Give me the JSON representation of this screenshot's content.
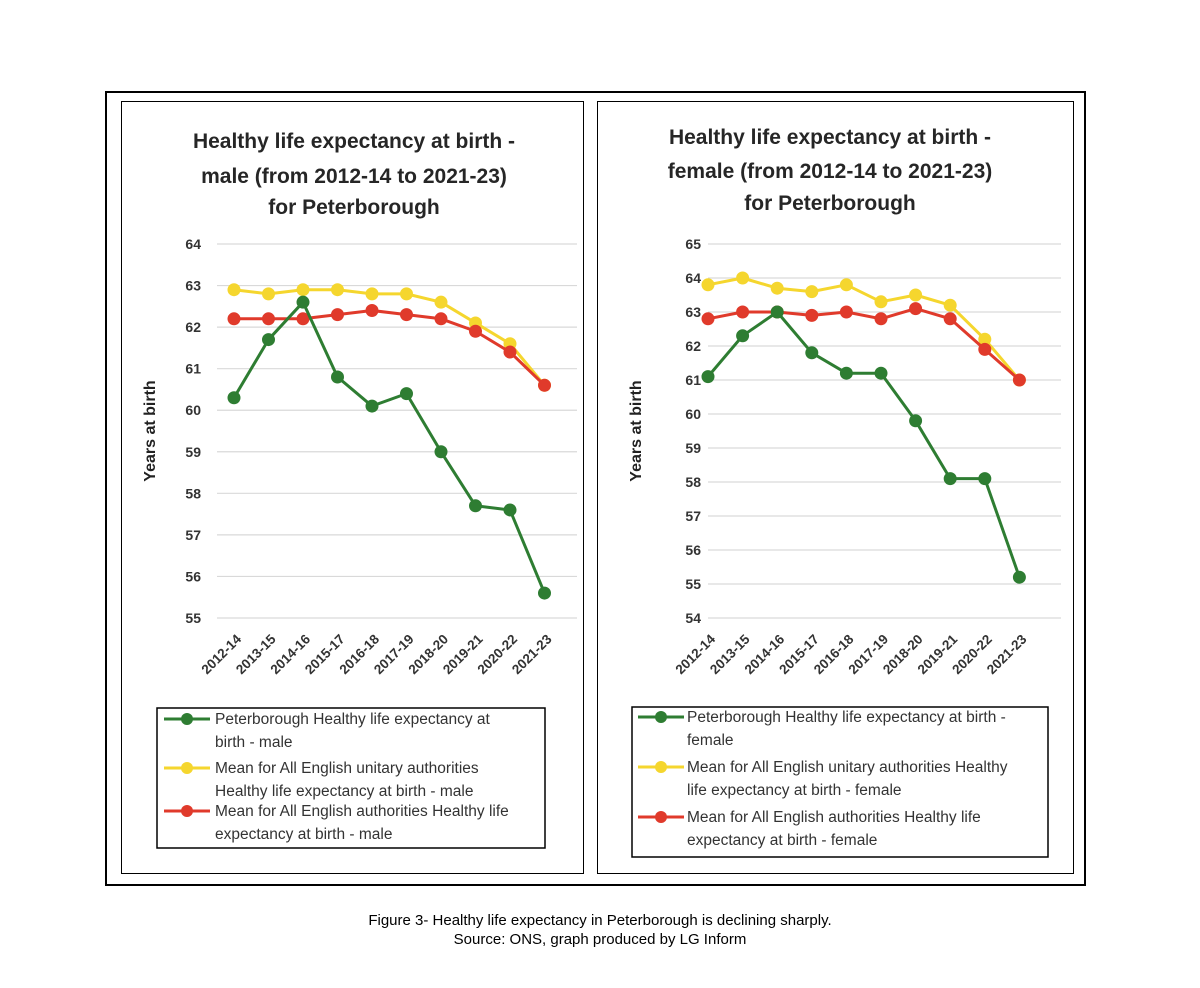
{
  "caption": {
    "line1": "Figure 3- Healthy life expectancy in Peterborough is declining sharply.",
    "line2": "Source: ONS, graph produced by LG Inform"
  },
  "colors": {
    "peterborough": "#2e7d32",
    "unitary": "#f5d62e",
    "all_english": "#e03a2b",
    "grid": "#d9d9d9"
  },
  "chart_data": [
    {
      "type": "line",
      "title": [
        "Healthy life expectancy at birth -",
        "male (from 2012-14 to 2021-23)",
        "for Peterborough"
      ],
      "xlabel": "",
      "ylabel": "Years at birth",
      "ylim": [
        55,
        64
      ],
      "yticks": [
        "64",
        "63",
        "62",
        "61",
        "60",
        "59",
        "58",
        "57",
        "56",
        "55"
      ],
      "grid": true,
      "categories": [
        "2012-14",
        "2013-15",
        "2014-16",
        "2015-17",
        "2016-18",
        "2017-19",
        "2018-20",
        "2019-21",
        "2020-22",
        "2021-23"
      ],
      "series": [
        {
          "name": "Mean for All English unitary authorities Healthy life expectancy at birth - male",
          "color_key": "unitary",
          "values": [
            62.9,
            62.8,
            62.9,
            62.9,
            62.8,
            62.8,
            62.6,
            62.1,
            61.6,
            60.6
          ]
        },
        {
          "name": "Mean for All English authorities Healthy life expectancy at birth - male",
          "color_key": "all_english",
          "values": [
            62.2,
            62.2,
            62.2,
            62.3,
            62.4,
            62.3,
            62.2,
            61.9,
            61.4,
            60.6
          ]
        },
        {
          "name": "Peterborough Healthy life expectancy at birth - male",
          "color_key": "peterborough",
          "values": [
            60.3,
            61.7,
            62.6,
            60.8,
            60.1,
            60.4,
            59.0,
            57.7,
            57.6,
            55.6
          ]
        }
      ],
      "legend": [
        {
          "color_key": "peterborough",
          "lines": [
            "Peterborough Healthy life expectancy at",
            "birth - male"
          ]
        },
        {
          "color_key": "unitary",
          "lines": [
            "Mean for All English unitary authorities",
            "Healthy life expectancy at birth - male"
          ]
        },
        {
          "color_key": "all_english",
          "lines": [
            "Mean for All English authorities Healthy life",
            "expectancy at birth - male"
          ]
        }
      ],
      "legend_position": "bottom"
    },
    {
      "type": "line",
      "title": [
        "Healthy life expectancy at birth -",
        "female (from 2012-14 to 2021-23)",
        "for Peterborough"
      ],
      "xlabel": "",
      "ylabel": "Years at birth",
      "ylim": [
        54,
        65
      ],
      "yticks": [
        "65",
        "64",
        "63",
        "62",
        "61",
        "60",
        "59",
        "58",
        "57",
        "56",
        "55",
        "54"
      ],
      "grid": true,
      "categories": [
        "2012-14",
        "2013-15",
        "2014-16",
        "2015-17",
        "2016-18",
        "2017-19",
        "2018-20",
        "2019-21",
        "2020-22",
        "2021-23"
      ],
      "series": [
        {
          "name": "Mean for All English unitary authorities Healthy life expectancy at birth - female",
          "color_key": "unitary",
          "values": [
            63.8,
            64.0,
            63.7,
            63.6,
            63.8,
            63.3,
            63.5,
            63.2,
            62.2,
            61.0
          ]
        },
        {
          "name": "Mean for All English authorities Healthy life expectancy at birth - female",
          "color_key": "all_english",
          "values": [
            62.8,
            63.0,
            63.0,
            62.9,
            63.0,
            62.8,
            63.1,
            62.8,
            61.9,
            61.0
          ]
        },
        {
          "name": "Peterborough Healthy life expectancy at birth - female",
          "color_key": "peterborough",
          "values": [
            61.1,
            62.3,
            63.0,
            61.8,
            61.2,
            61.2,
            59.8,
            58.1,
            58.1,
            55.2
          ]
        }
      ],
      "legend": [
        {
          "color_key": "peterborough",
          "lines": [
            "Peterborough Healthy life expectancy at birth -",
            "female"
          ]
        },
        {
          "color_key": "unitary",
          "lines": [
            "Mean for All English unitary authorities Healthy",
            "life expectancy at birth - female"
          ]
        },
        {
          "color_key": "all_english",
          "lines": [
            "Mean for All English authorities Healthy life",
            "expectancy at birth - female"
          ]
        }
      ],
      "legend_position": "bottom"
    }
  ]
}
